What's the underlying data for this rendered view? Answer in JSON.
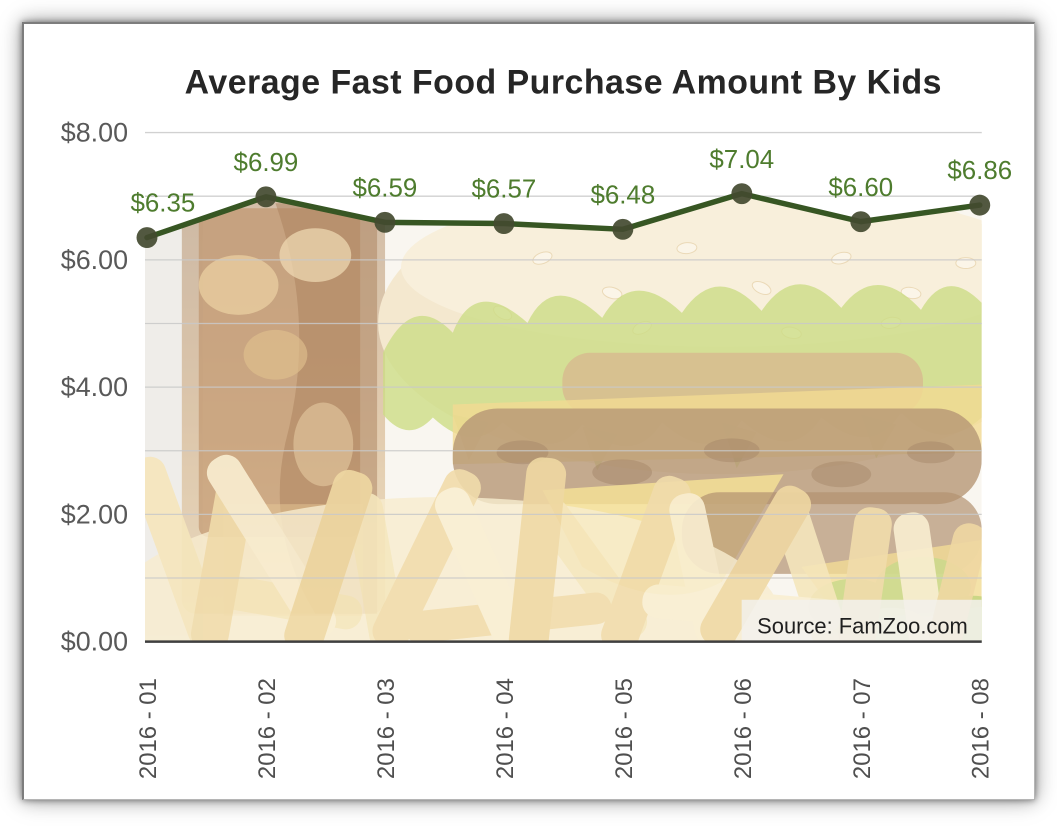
{
  "chart_data": {
    "type": "line",
    "title": "Average Fast Food Purchase Amount By Kids",
    "categories": [
      "2016 - 01",
      "2016 - 02",
      "2016 - 03",
      "2016 - 04",
      "2016 - 05",
      "2016 - 06",
      "2016 - 07",
      "2016 - 08"
    ],
    "values": [
      6.35,
      6.99,
      6.59,
      6.57,
      6.48,
      7.04,
      6.6,
      6.86
    ],
    "data_labels": [
      "$6.35",
      "$6.99",
      "$6.59",
      "$6.57",
      "$6.48",
      "$7.04",
      "$6.60",
      "$6.86"
    ],
    "y_axis": {
      "min": 0,
      "max": 8,
      "grid_step": 1,
      "label_step": 2,
      "tick_labels": [
        "$0.00",
        "$2.00",
        "$4.00",
        "$6.00",
        "$8.00"
      ]
    },
    "x_axis": {
      "label_rotation_degrees": 90
    },
    "source": "Source: FamZoo.com",
    "legend": "none",
    "grid": "horizontal",
    "background_image": "faded-fast-food-photo-icon (cheeseburger, french fries, soda) filling area under line",
    "colors": {
      "line": "#375623",
      "marker": "#434a30",
      "data_label": "#4e7c2e",
      "axis_label": "#595959",
      "x_axis_label": "#4f4f4f",
      "grid": "#c9c9c9",
      "axis_line": "#3f3f3f",
      "title": "#262626",
      "source": "#1f1f1f"
    }
  }
}
